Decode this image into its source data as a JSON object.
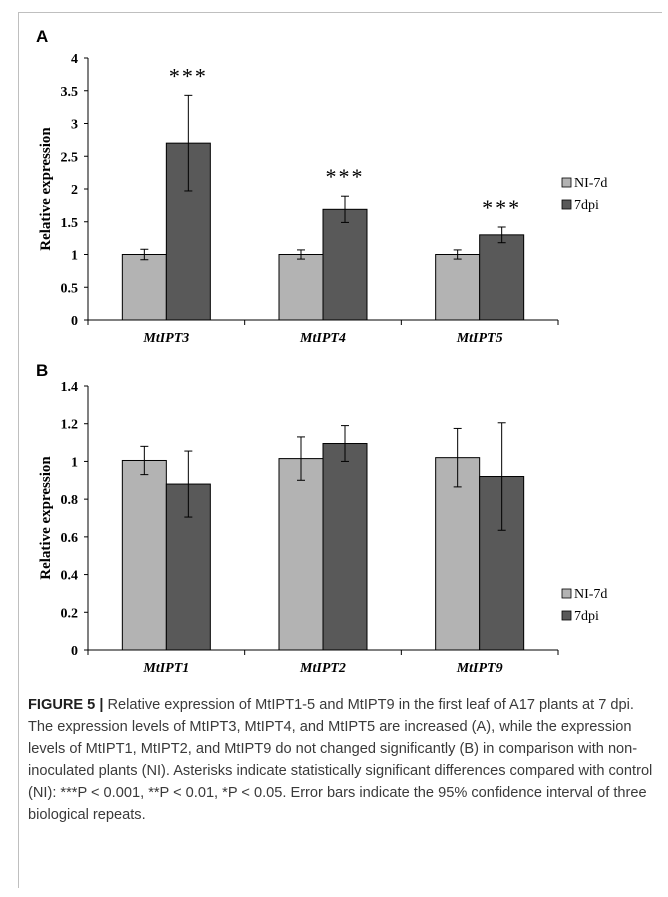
{
  "chart_data": [
    {
      "type": "bar",
      "panel_label": "A",
      "ylabel": "Relative expression",
      "categories": [
        "MtIPT3",
        "MtIPT4",
        "MtIPT5"
      ],
      "series": [
        {
          "name": "NI-7d",
          "values": [
            1.0,
            1.0,
            1.0
          ],
          "error": [
            0.08,
            0.07,
            0.07
          ],
          "color": "#b3b3b3"
        },
        {
          "name": "7dpi",
          "values": [
            2.7,
            1.69,
            1.3
          ],
          "error": [
            0.73,
            0.2,
            0.12
          ],
          "color": "#595959"
        }
      ],
      "significance": [
        "***",
        "***",
        "***"
      ],
      "ylim": [
        0,
        4
      ],
      "yticks": [
        "0",
        "0.5",
        "1",
        "1.5",
        "2",
        "2.5",
        "3",
        "3.5",
        "4"
      ],
      "grid": false,
      "legend": "right"
    },
    {
      "type": "bar",
      "panel_label": "B",
      "ylabel": "Relative expression",
      "categories": [
        "MtIPT1",
        "MtIPT2",
        "MtIPT9"
      ],
      "series": [
        {
          "name": "NI-7d",
          "values": [
            1.005,
            1.015,
            1.02
          ],
          "error": [
            0.075,
            0.115,
            0.155
          ],
          "color": "#b3b3b3"
        },
        {
          "name": "7dpi",
          "values": [
            0.88,
            1.095,
            0.92
          ],
          "error": [
            0.175,
            0.095,
            0.285
          ],
          "color": "#595959"
        }
      ],
      "ylim": [
        0,
        1.4
      ],
      "yticks": [
        "0",
        "0.2",
        "0.4",
        "0.6",
        "0.8",
        "1",
        "1.2",
        "1.4"
      ],
      "grid": false,
      "legend": "right"
    }
  ],
  "caption": {
    "label": "FIGURE 5 |",
    "text": "Relative expression of MtIPT1-5 and MtIPT9 in the first leaf of A17 plants at 7 dpi. The expression levels of MtIPT3, MtIPT4, and MtIPT5 are increased (A), while the expression levels of MtIPT1, MtIPT2, and MtIPT9 do not changed significantly (B) in comparison with non-inoculated plants (NI). Asterisks indicate statistically significant differences compared with control (NI): ***P < 0.001, **P < 0.01, *P < 0.05. Error bars indicate the 95% confidence interval of three biological repeats."
  }
}
